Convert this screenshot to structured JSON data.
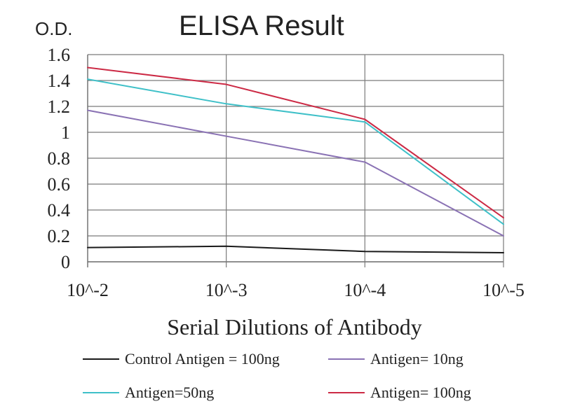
{
  "chart_data": {
    "type": "line",
    "title": "ELISA Result",
    "ylabel": "O.D.",
    "xlabel": "Serial Dilutions of Antibody",
    "categories": [
      "10^-2",
      "10^-3",
      "10^-4",
      "10^-5"
    ],
    "ylim": [
      0,
      1.6
    ],
    "yticks": [
      0,
      0.2,
      0.4,
      0.6,
      0.8,
      1,
      1.2,
      1.4,
      1.6
    ],
    "ytick_labels": [
      "0",
      "0.2",
      "0.4",
      "0.6",
      "0.8",
      "1",
      "1.2",
      "1.4",
      "1.6"
    ],
    "grid": true,
    "legend_position": "bottom",
    "series": [
      {
        "name": "Control Antigen = 100ng",
        "color": "#1a1a1a",
        "values": [
          0.11,
          0.12,
          0.08,
          0.07
        ]
      },
      {
        "name": "Antigen= 10ng",
        "color": "#8a72b4",
        "values": [
          1.17,
          0.97,
          0.77,
          0.2
        ]
      },
      {
        "name": "Antigen=50ng",
        "color": "#3fc0c8",
        "values": [
          1.41,
          1.22,
          1.08,
          0.29
        ]
      },
      {
        "name": "Antigen= 100ng",
        "color": "#cc2a45",
        "values": [
          1.5,
          1.37,
          1.1,
          0.34
        ]
      }
    ]
  }
}
